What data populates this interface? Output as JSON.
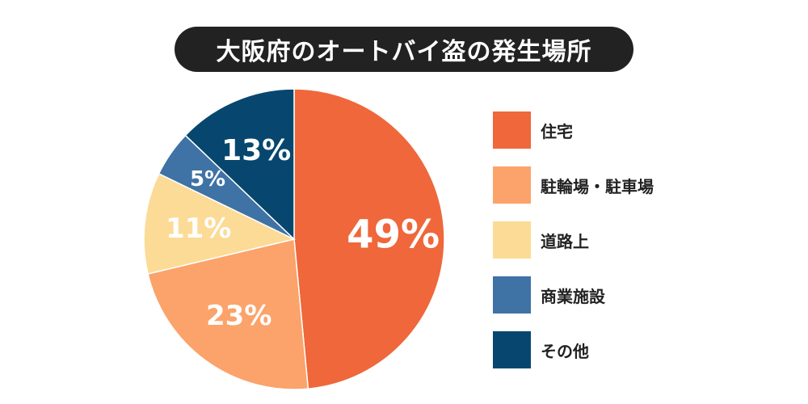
{
  "chart_data": {
    "type": "pie",
    "title": "大阪府のオートバイ盗の発生場所",
    "categories": [
      "住宅",
      "駐輪場・駐車場",
      "道路上",
      "商業施設",
      "その他"
    ],
    "values": [
      49,
      23,
      11,
      5,
      13
    ],
    "value_labels": [
      "49%",
      "23%",
      "11%",
      "5%",
      "13%"
    ],
    "colors": [
      "#ef673a",
      "#fba36a",
      "#fcdb97",
      "#3f72a5",
      "#07476f"
    ],
    "label_colors": [
      "#ffffff",
      "#ffffff",
      "#ffffff",
      "#ffffff",
      "#ffffff"
    ],
    "start_angle": "12 o'clock",
    "direction": "clockwise",
    "legend_position": "right"
  },
  "legend": {
    "items": [
      {
        "label": "住宅",
        "color": "#ef673a"
      },
      {
        "label": "駐輪場・駐車場",
        "color": "#fba36a"
      },
      {
        "label": "道路上",
        "color": "#fcdb97"
      },
      {
        "label": "商業施設",
        "color": "#3f72a5"
      },
      {
        "label": "その他",
        "color": "#07476f"
      }
    ]
  }
}
